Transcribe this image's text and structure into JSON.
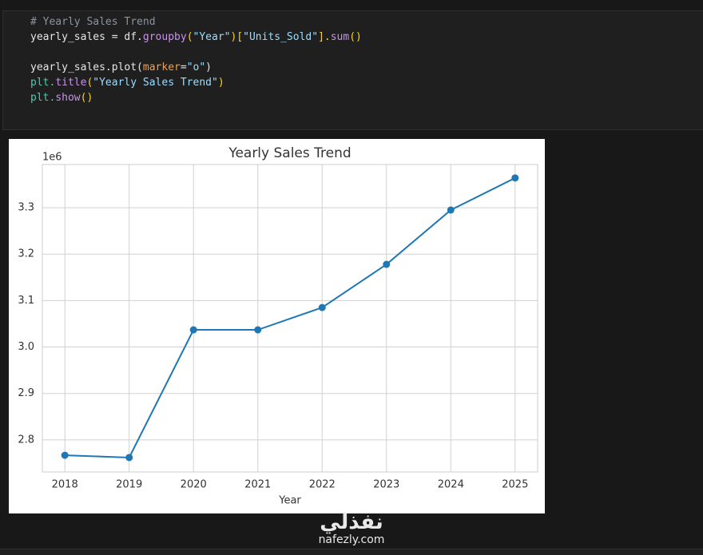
{
  "code": [
    [
      {
        "text": "# Yearly Sales Trend",
        "color": "#8b949e"
      }
    ],
    [
      {
        "text": "yearly_sales = df.",
        "color": "#e6e6e6"
      },
      {
        "text": "groupby",
        "color": "#c792ea"
      },
      {
        "text": "(",
        "color": "#ffd700"
      },
      {
        "text": "\"Year\"",
        "color": "#9cdcfe"
      },
      {
        "text": ")[",
        "color": "#ffd700"
      },
      {
        "text": "\"Units_Sold\"",
        "color": "#9cdcfe"
      },
      {
        "text": "].",
        "color": "#ffd700"
      },
      {
        "text": "sum",
        "color": "#c792ea"
      },
      {
        "text": "()",
        "color": "#ffd700"
      }
    ],
    [
      {
        "text": "yearly_sales.plot(",
        "color": "#e6e6e6"
      },
      {
        "text": "marker",
        "color": "#f0a050"
      },
      {
        "text": "=",
        "color": "#e6e6e6"
      },
      {
        "text": "\"o\"",
        "color": "#9cdcfe"
      },
      {
        "text": ")",
        "color": "#e6e6e6"
      }
    ],
    [
      {
        "text": "plt.",
        "color": "#4ec9b0"
      },
      {
        "text": "title",
        "color": "#c792ea"
      },
      {
        "text": "(",
        "color": "#ffd700"
      },
      {
        "text": "\"Yearly Sales Trend\"",
        "color": "#9cdcfe"
      },
      {
        "text": ")",
        "color": "#ffd700"
      }
    ],
    [
      {
        "text": "plt.",
        "color": "#4ec9b0"
      },
      {
        "text": "show",
        "color": "#c792ea"
      },
      {
        "text": "()",
        "color": "#ffd700"
      }
    ]
  ],
  "chart_data": {
    "type": "line",
    "title": "Yearly Sales Trend",
    "x_label": "Year",
    "offset_label": "1e6",
    "x": [
      2018,
      2019,
      2020,
      2021,
      2022,
      2023,
      2024,
      2025
    ],
    "series": [
      {
        "name": "Units_Sold",
        "color": "#1f77b4",
        "values": [
          2.767,
          2.762,
          3.037,
          3.037,
          3.085,
          3.178,
          3.295,
          3.364
        ]
      }
    ],
    "xlim": [
      2017.65,
      2025.35
    ],
    "xticks": [
      2018,
      2019,
      2020,
      2021,
      2022,
      2023,
      2024,
      2025
    ],
    "ylim": [
      2.731,
      3.393
    ],
    "yticks": [
      2.8,
      2.9,
      {
        "value": 3,
        "label": "3.0"
      },
      3.1,
      3.2,
      3.3
    ],
    "grid": true
  },
  "watermark": {
    "arabic": "نفذلي",
    "latin": "nafezly.com"
  }
}
